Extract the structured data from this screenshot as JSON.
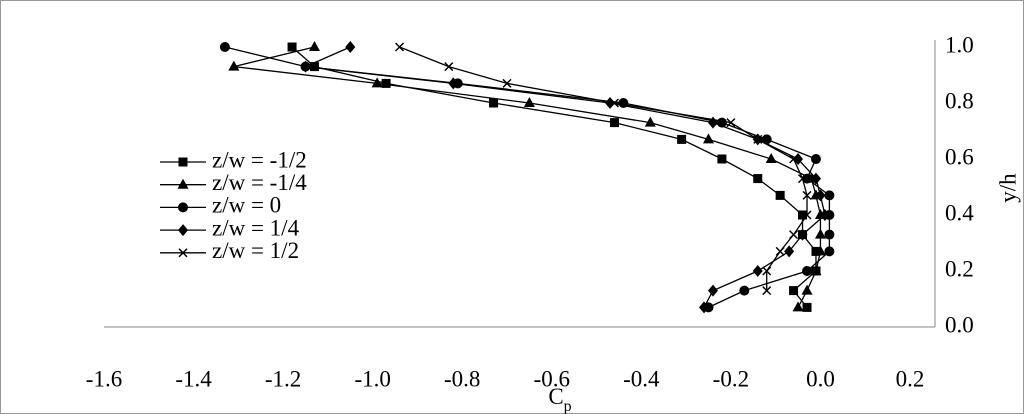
{
  "chart_data": {
    "type": "line",
    "xlabel": "C",
    "xlabel_sub": "p",
    "ylabel": "y/h",
    "xlim": [
      -1.6,
      0.2
    ],
    "ylim": [
      0,
      1.0
    ],
    "xticks": [
      -1.6,
      -1.4,
      -1.2,
      {
        "value": -1.0,
        "label": "-1.0"
      },
      -0.8,
      -0.6,
      -0.4,
      -0.2,
      {
        "value": 0,
        "label": "0.0"
      },
      0.2
    ],
    "yticks": [
      {
        "value": 0,
        "label": "0.0"
      },
      0.2,
      0.4,
      0.6,
      0.8,
      {
        "value": 1.0,
        "label": "1.0"
      }
    ],
    "series": [
      {
        "name": "z/w = -1/2",
        "marker": "square",
        "color": "#000000",
        "x": [
          -1.18,
          -1.13,
          -0.97,
          -0.73,
          -0.46,
          -0.31,
          -0.22,
          -0.14,
          -0.09,
          -0.04,
          -0.04,
          -0.01,
          -0.01,
          -0.06,
          -0.03
        ],
        "y": [
          1.0,
          0.93,
          0.87,
          0.8,
          0.73,
          0.67,
          0.6,
          0.53,
          0.47,
          0.4,
          0.33,
          0.27,
          0.2,
          0.13,
          0.07
        ]
      },
      {
        "name": "z/w = -1/4",
        "marker": "triangle",
        "color": "#000000",
        "x": [
          -1.13,
          -1.31,
          -0.99,
          -0.65,
          -0.38,
          -0.25,
          -0.11,
          -0.02,
          -0.01,
          0.0,
          0.0,
          0.0,
          -0.01,
          -0.03,
          -0.05
        ],
        "y": [
          1.0,
          0.93,
          0.87,
          0.8,
          0.73,
          0.67,
          0.6,
          0.53,
          0.47,
          0.4,
          0.33,
          0.27,
          0.2,
          0.13,
          0.07
        ]
      },
      {
        "name": "z/w = 0",
        "marker": "circle",
        "color": "#000000",
        "x": [
          -1.33,
          -1.15,
          -0.81,
          -0.44,
          -0.22,
          -0.12,
          -0.01,
          -0.03,
          0.02,
          0.02,
          0.02,
          0.02,
          -0.03,
          -0.17,
          -0.25
        ],
        "y": [
          1.0,
          0.93,
          0.87,
          0.8,
          0.73,
          0.67,
          0.6,
          0.53,
          0.47,
          0.4,
          0.33,
          0.27,
          0.2,
          0.13,
          0.07
        ]
      },
      {
        "name": "z/w = 1/4",
        "marker": "diamond",
        "color": "#000000",
        "x": [
          -1.05,
          -1.15,
          -0.82,
          -0.47,
          -0.24,
          -0.14,
          -0.05,
          -0.01,
          0.0,
          0.01,
          -0.04,
          -0.07,
          -0.14,
          -0.24,
          -0.26
        ],
        "y": [
          1.0,
          0.93,
          0.87,
          0.8,
          0.73,
          0.67,
          0.6,
          0.53,
          0.47,
          0.4,
          0.33,
          0.27,
          0.2,
          0.13,
          0.07
        ]
      },
      {
        "name": "z/w = 1/2",
        "marker": "cross",
        "color": "#000000",
        "x": [
          -0.94,
          -0.83,
          -0.7,
          -0.46,
          -0.2,
          -0.14,
          -0.06,
          -0.04,
          -0.03,
          -0.03,
          -0.06,
          -0.09,
          -0.12,
          -0.12
        ],
        "y": [
          1.0,
          0.93,
          0.87,
          0.8,
          0.73,
          0.67,
          0.6,
          0.53,
          0.47,
          0.4,
          0.33,
          0.27,
          0.2,
          0.13
        ]
      }
    ]
  }
}
